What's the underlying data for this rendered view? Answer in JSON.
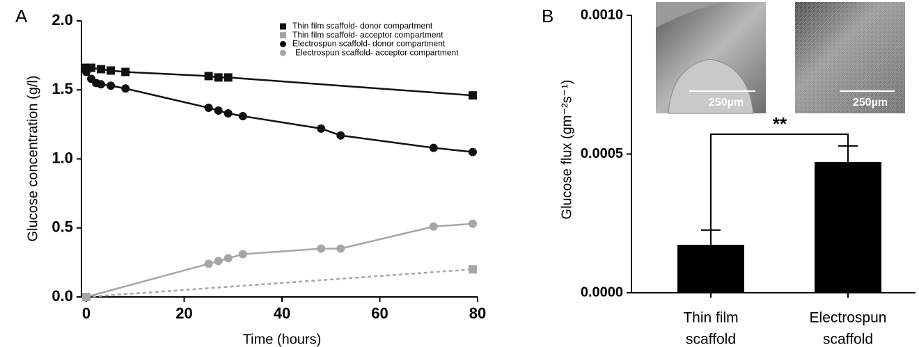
{
  "chart_data": [
    {
      "type": "scatter",
      "panel_label": "A",
      "x_label": "Time (hours)",
      "y_label": "Glucose concentration (g/l)",
      "xlim": [
        -1,
        80
      ],
      "xticks": [
        0,
        20,
        40,
        60,
        80
      ],
      "ylim": [
        0,
        2
      ],
      "yticks": [
        {
          "value": 0,
          "label": "0.0"
        },
        {
          "value": 0.5,
          "label": "0.5"
        },
        {
          "value": 1,
          "label": "1.0"
        },
        {
          "value": 1.5,
          "label": "1.5"
        },
        {
          "value": 2,
          "label": "2.0"
        }
      ],
      "legend": "upper center",
      "series": [
        {
          "name": "Thin film scaffold- donor compartment",
          "color": "#111111",
          "marker": "square",
          "linestyle": "solid",
          "x": [
            0,
            1,
            3,
            5,
            8,
            25,
            27,
            29,
            79
          ],
          "values": [
            1.66,
            1.66,
            1.65,
            1.64,
            1.63,
            1.6,
            1.59,
            1.59,
            1.46
          ]
        },
        {
          "name": "Thin film scaffold- acceptor compartment",
          "color": "#a6a6a6",
          "marker": "square",
          "linestyle": "dashed",
          "x": [
            0,
            79
          ],
          "values": [
            0,
            0.2
          ]
        },
        {
          "name": "Electrospun scaffold- donor compartment",
          "color": "#111111",
          "marker": "circle",
          "linestyle": "solid",
          "x": [
            0,
            1,
            2,
            3,
            5,
            8,
            25,
            27,
            29,
            32,
            48,
            52,
            71,
            79
          ],
          "values": [
            1.63,
            1.58,
            1.55,
            1.54,
            1.53,
            1.51,
            1.37,
            1.35,
            1.33,
            1.31,
            1.22,
            1.17,
            1.08,
            1.05
          ]
        },
        {
          "name": "Electrospun scaffold- acceptor compartment",
          "color": "#a6a6a6",
          "marker": "circle",
          "linestyle": "solid",
          "x": [
            0,
            25,
            27,
            29,
            32,
            48,
            52,
            71,
            79
          ],
          "values": [
            0,
            0.24,
            0.26,
            0.28,
            0.31,
            0.35,
            0.35,
            0.51,
            0.53
          ]
        }
      ]
    },
    {
      "type": "bar",
      "panel_label": "B",
      "y_label": "Glucose flux (gm⁻²s⁻¹)",
      "categories": [
        [
          "Thin film",
          "scaffold"
        ],
        [
          "Electrospun",
          "scaffold"
        ]
      ],
      "values": [
        0.000173,
        0.000471
      ],
      "errors": [
        5.3e-05,
        5.8e-05
      ],
      "color": "#000000",
      "ylim": [
        0,
        0.001
      ],
      "yticks": [
        {
          "value": 0,
          "label": "0.0000"
        },
        {
          "value": 0.0005,
          "label": "0.0005"
        },
        {
          "value": 0.001,
          "label": "0.0010"
        }
      ],
      "annotation": "**",
      "image_labels": [
        "250µm",
        "250µm"
      ]
    }
  ]
}
